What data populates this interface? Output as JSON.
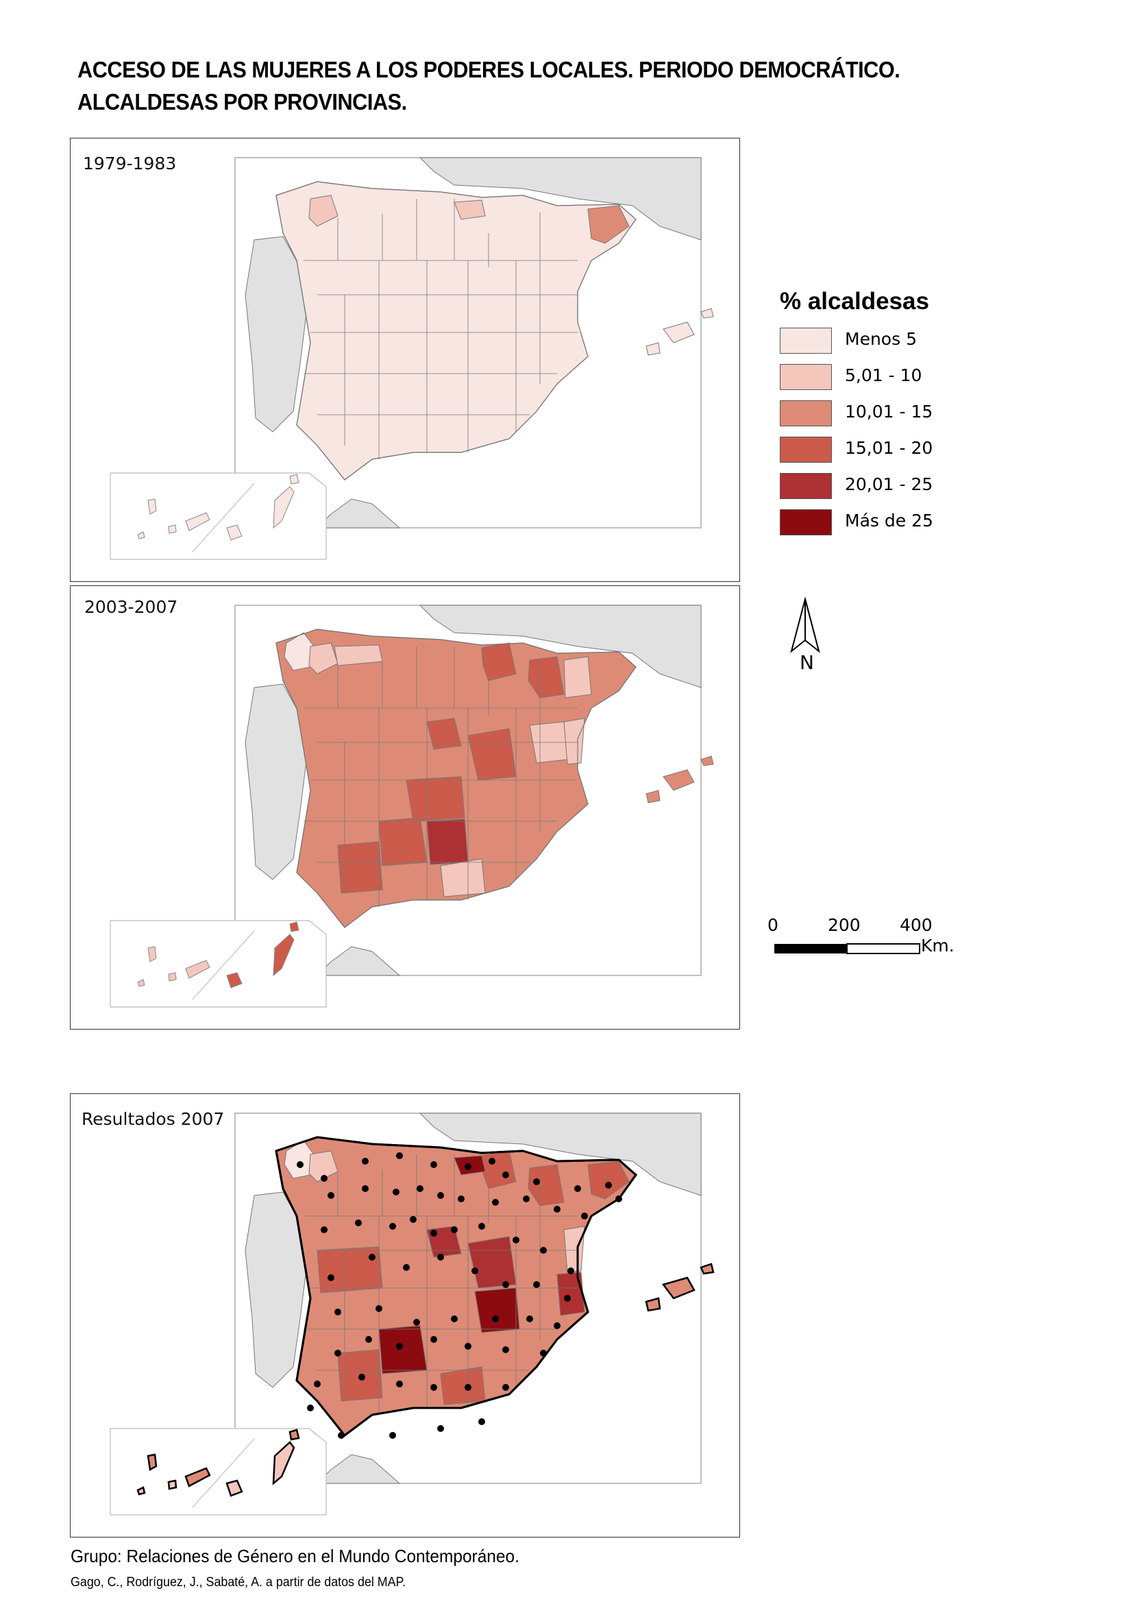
{
  "title": {
    "line1": "ACCESO DE LAS MUJERES A LOS PODERES LOCALES. PERIODO DEMOCRÁTICO.",
    "line2": "ALCALDESAS POR PROVINCIAS."
  },
  "colors": {
    "class1": "#f8e6e2",
    "class2": "#f4c7bd",
    "class3": "#dd8b76",
    "class4": "#cc5b4b",
    "class5": "#ad3032",
    "class6": "#8b0b10",
    "neighbor": "#e1e1e1",
    "border": "#777777"
  },
  "maps": [
    {
      "label": "1979-1983",
      "base_class": 1,
      "highlight": [
        {
          "region": "galicia-east",
          "class": 2
        },
        {
          "region": "catalonia-ne",
          "class": 3
        },
        {
          "region": "basque",
          "class": 2
        }
      ],
      "show_capitals": false
    },
    {
      "label": "2003-2007",
      "base_class": 3,
      "highlight": [
        {
          "region": "galicia-north",
          "class": 1
        },
        {
          "region": "galicia-east",
          "class": 2
        },
        {
          "region": "asturias",
          "class": 2
        },
        {
          "region": "navarra",
          "class": 4
        },
        {
          "region": "huesca",
          "class": 4
        },
        {
          "region": "lleida",
          "class": 2
        },
        {
          "region": "teruel",
          "class": 2
        },
        {
          "region": "castellon",
          "class": 2
        },
        {
          "region": "madrid",
          "class": 4
        },
        {
          "region": "cuenca",
          "class": 4
        },
        {
          "region": "ciudad-real",
          "class": 4
        },
        {
          "region": "jaen",
          "class": 5
        },
        {
          "region": "cordoba",
          "class": 4
        },
        {
          "region": "granada",
          "class": 2
        },
        {
          "region": "sevilla",
          "class": 4
        },
        {
          "region": "canarias-east",
          "class": 4
        }
      ],
      "show_capitals": false
    },
    {
      "label": "Resultados 2007",
      "base_class": 3,
      "highlight": [
        {
          "region": "galicia-north",
          "class": 1
        },
        {
          "region": "galicia-east",
          "class": 2
        },
        {
          "region": "navarra",
          "class": 4
        },
        {
          "region": "huesca",
          "class": 4
        },
        {
          "region": "catalonia-ne",
          "class": 4
        },
        {
          "region": "castellon",
          "class": 2
        },
        {
          "region": "madrid",
          "class": 5
        },
        {
          "region": "cuenca",
          "class": 5
        },
        {
          "region": "caceres",
          "class": 4
        },
        {
          "region": "albacete",
          "class": 6
        },
        {
          "region": "valencia",
          "class": 5
        },
        {
          "region": "cordoba",
          "class": 6
        },
        {
          "region": "basque",
          "class": 6
        },
        {
          "region": "sevilla",
          "class": 4
        },
        {
          "region": "granada",
          "class": 4
        }
      ],
      "show_capitals": true
    }
  ],
  "legend": {
    "title": "% alcaldesas",
    "items": [
      {
        "label": "Menos 5",
        "color": "#f8e6e2"
      },
      {
        "label": "5,01 - 10",
        "color": "#f4c7bd"
      },
      {
        "label": "10,01 - 15",
        "color": "#dd8b76"
      },
      {
        "label": "15,01 - 20",
        "color": "#cc5b4b"
      },
      {
        "label": "20,01 - 25",
        "color": "#ad3032"
      },
      {
        "label": "Más de 25",
        "color": "#8b0b10"
      }
    ]
  },
  "north_arrow": {
    "label": "N"
  },
  "scale_bar": {
    "ticks": [
      "0",
      "200",
      "400"
    ],
    "unit": "Km."
  },
  "footer": {
    "line1": "Grupo: Relaciones de Género en el Mundo Contemporáneo.",
    "line2": "Gago, C., Rodríguez, J., Sabaté, A. a partir de datos del MAP."
  }
}
